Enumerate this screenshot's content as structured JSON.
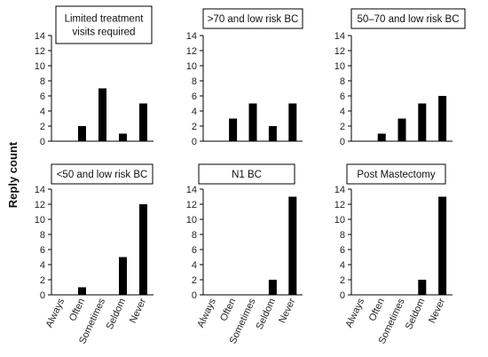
{
  "figure": {
    "ylabel": "Reply count"
  },
  "chart_data": [
    {
      "type": "bar",
      "title": [
        "Limited treatment",
        "visits required"
      ],
      "categories": [
        "Always",
        "Often",
        "Sometimes",
        "Seldom",
        "Never"
      ],
      "values": [
        0,
        2,
        7,
        1,
        5
      ],
      "ylim": [
        0,
        14
      ],
      "yticks": [
        0,
        2,
        4,
        6,
        8,
        10,
        12,
        14
      ],
      "grid": false,
      "bar_color": "#000000",
      "show_category_labels": false
    },
    {
      "type": "bar",
      "title": [
        ">70 and low risk BC"
      ],
      "categories": [
        "Always",
        "Often",
        "Sometimes",
        "Seldom",
        "Never"
      ],
      "values": [
        0,
        3,
        5,
        2,
        5
      ],
      "ylim": [
        0,
        14
      ],
      "yticks": [
        0,
        2,
        4,
        6,
        8,
        10,
        12,
        14
      ],
      "grid": false,
      "bar_color": "#000000",
      "show_category_labels": false
    },
    {
      "type": "bar",
      "title": [
        "50–70 and low risk BC"
      ],
      "categories": [
        "Always",
        "Often",
        "Sometimes",
        "Seldom",
        "Never"
      ],
      "values": [
        0,
        1,
        3,
        5,
        6
      ],
      "ylim": [
        0,
        14
      ],
      "yticks": [
        0,
        2,
        4,
        6,
        8,
        10,
        12,
        14
      ],
      "grid": false,
      "bar_color": "#000000",
      "show_category_labels": false
    },
    {
      "type": "bar",
      "title": [
        "<50 and low risk BC"
      ],
      "categories": [
        "Always",
        "Often",
        "Sometimes",
        "Seldom",
        "Never"
      ],
      "values": [
        0,
        1,
        0,
        5,
        12
      ],
      "ylim": [
        0,
        14
      ],
      "yticks": [
        0,
        2,
        4,
        6,
        8,
        10,
        12,
        14
      ],
      "grid": false,
      "bar_color": "#000000",
      "show_category_labels": true
    },
    {
      "type": "bar",
      "title": [
        "N1 BC"
      ],
      "categories": [
        "Always",
        "Often",
        "Sometimes",
        "Seldom",
        "Never"
      ],
      "values": [
        0,
        0,
        0,
        2,
        13
      ],
      "ylim": [
        0,
        14
      ],
      "yticks": [
        0,
        2,
        4,
        6,
        8,
        10,
        12,
        14
      ],
      "grid": false,
      "bar_color": "#000000",
      "show_category_labels": true
    },
    {
      "type": "bar",
      "title": [
        "Post Mastectomy"
      ],
      "categories": [
        "Always",
        "Often",
        "Sometimes",
        "Seldom",
        "Never"
      ],
      "values": [
        0,
        0,
        0,
        2,
        13
      ],
      "ylim": [
        0,
        14
      ],
      "yticks": [
        0,
        2,
        4,
        6,
        8,
        10,
        12,
        14
      ],
      "grid": false,
      "bar_color": "#000000",
      "show_category_labels": true
    }
  ]
}
